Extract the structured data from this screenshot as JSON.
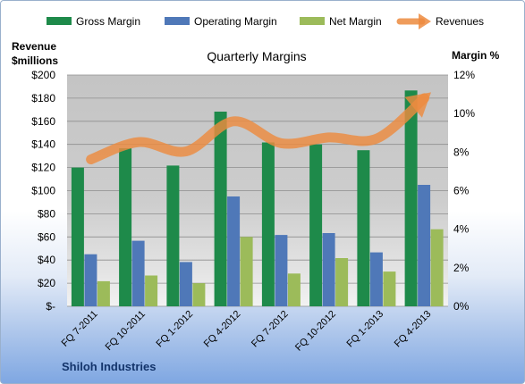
{
  "chart_data": {
    "type": "bar",
    "title": "Quarterly Margins",
    "company": "Shiloh Industries",
    "left_axis_label_line1": "Revenue",
    "left_axis_label_line2": "$millions",
    "right_axis_label": "Margin %",
    "categories": [
      "FQ 7-2011",
      "FQ 10-2011",
      "FQ 1-2012",
      "FQ 4-2012",
      "FQ 7-2012",
      "FQ 10-2012",
      "FQ 1-2013",
      "FQ 4-2013"
    ],
    "y_left_ticks": [
      "$-",
      "$20",
      "$40",
      "$60",
      "$80",
      "$100",
      "$120",
      "$140",
      "$160",
      "$180",
      "$200"
    ],
    "y_right_ticks": [
      "0%",
      "2%",
      "4%",
      "6%",
      "8%",
      "10%",
      "12%"
    ],
    "ylim_left": [
      0,
      200
    ],
    "ylim_right": [
      0,
      12
    ],
    "grid": "horizontal",
    "legend_position": "top",
    "series": [
      {
        "name": "Gross Margin",
        "axis": "right",
        "color": "#1e8a4a",
        "values": [
          7.2,
          8.2,
          7.3,
          10.1,
          8.5,
          8.4,
          8.1,
          11.2
        ]
      },
      {
        "name": "Operating Margin",
        "axis": "right",
        "color": "#4f78b8",
        "values": [
          2.7,
          3.4,
          2.3,
          5.7,
          3.7,
          3.8,
          2.8,
          6.3
        ]
      },
      {
        "name": "Net Margin",
        "axis": "right",
        "color": "#9cbb5a",
        "values": [
          1.3,
          1.6,
          1.2,
          3.6,
          1.7,
          2.5,
          1.8,
          4.0
        ]
      },
      {
        "name": "Revenues",
        "axis": "left",
        "color": "#ed8b3f",
        "type": "line",
        "values": [
          127,
          142,
          134,
          160,
          141,
          146,
          145,
          180
        ]
      }
    ]
  }
}
